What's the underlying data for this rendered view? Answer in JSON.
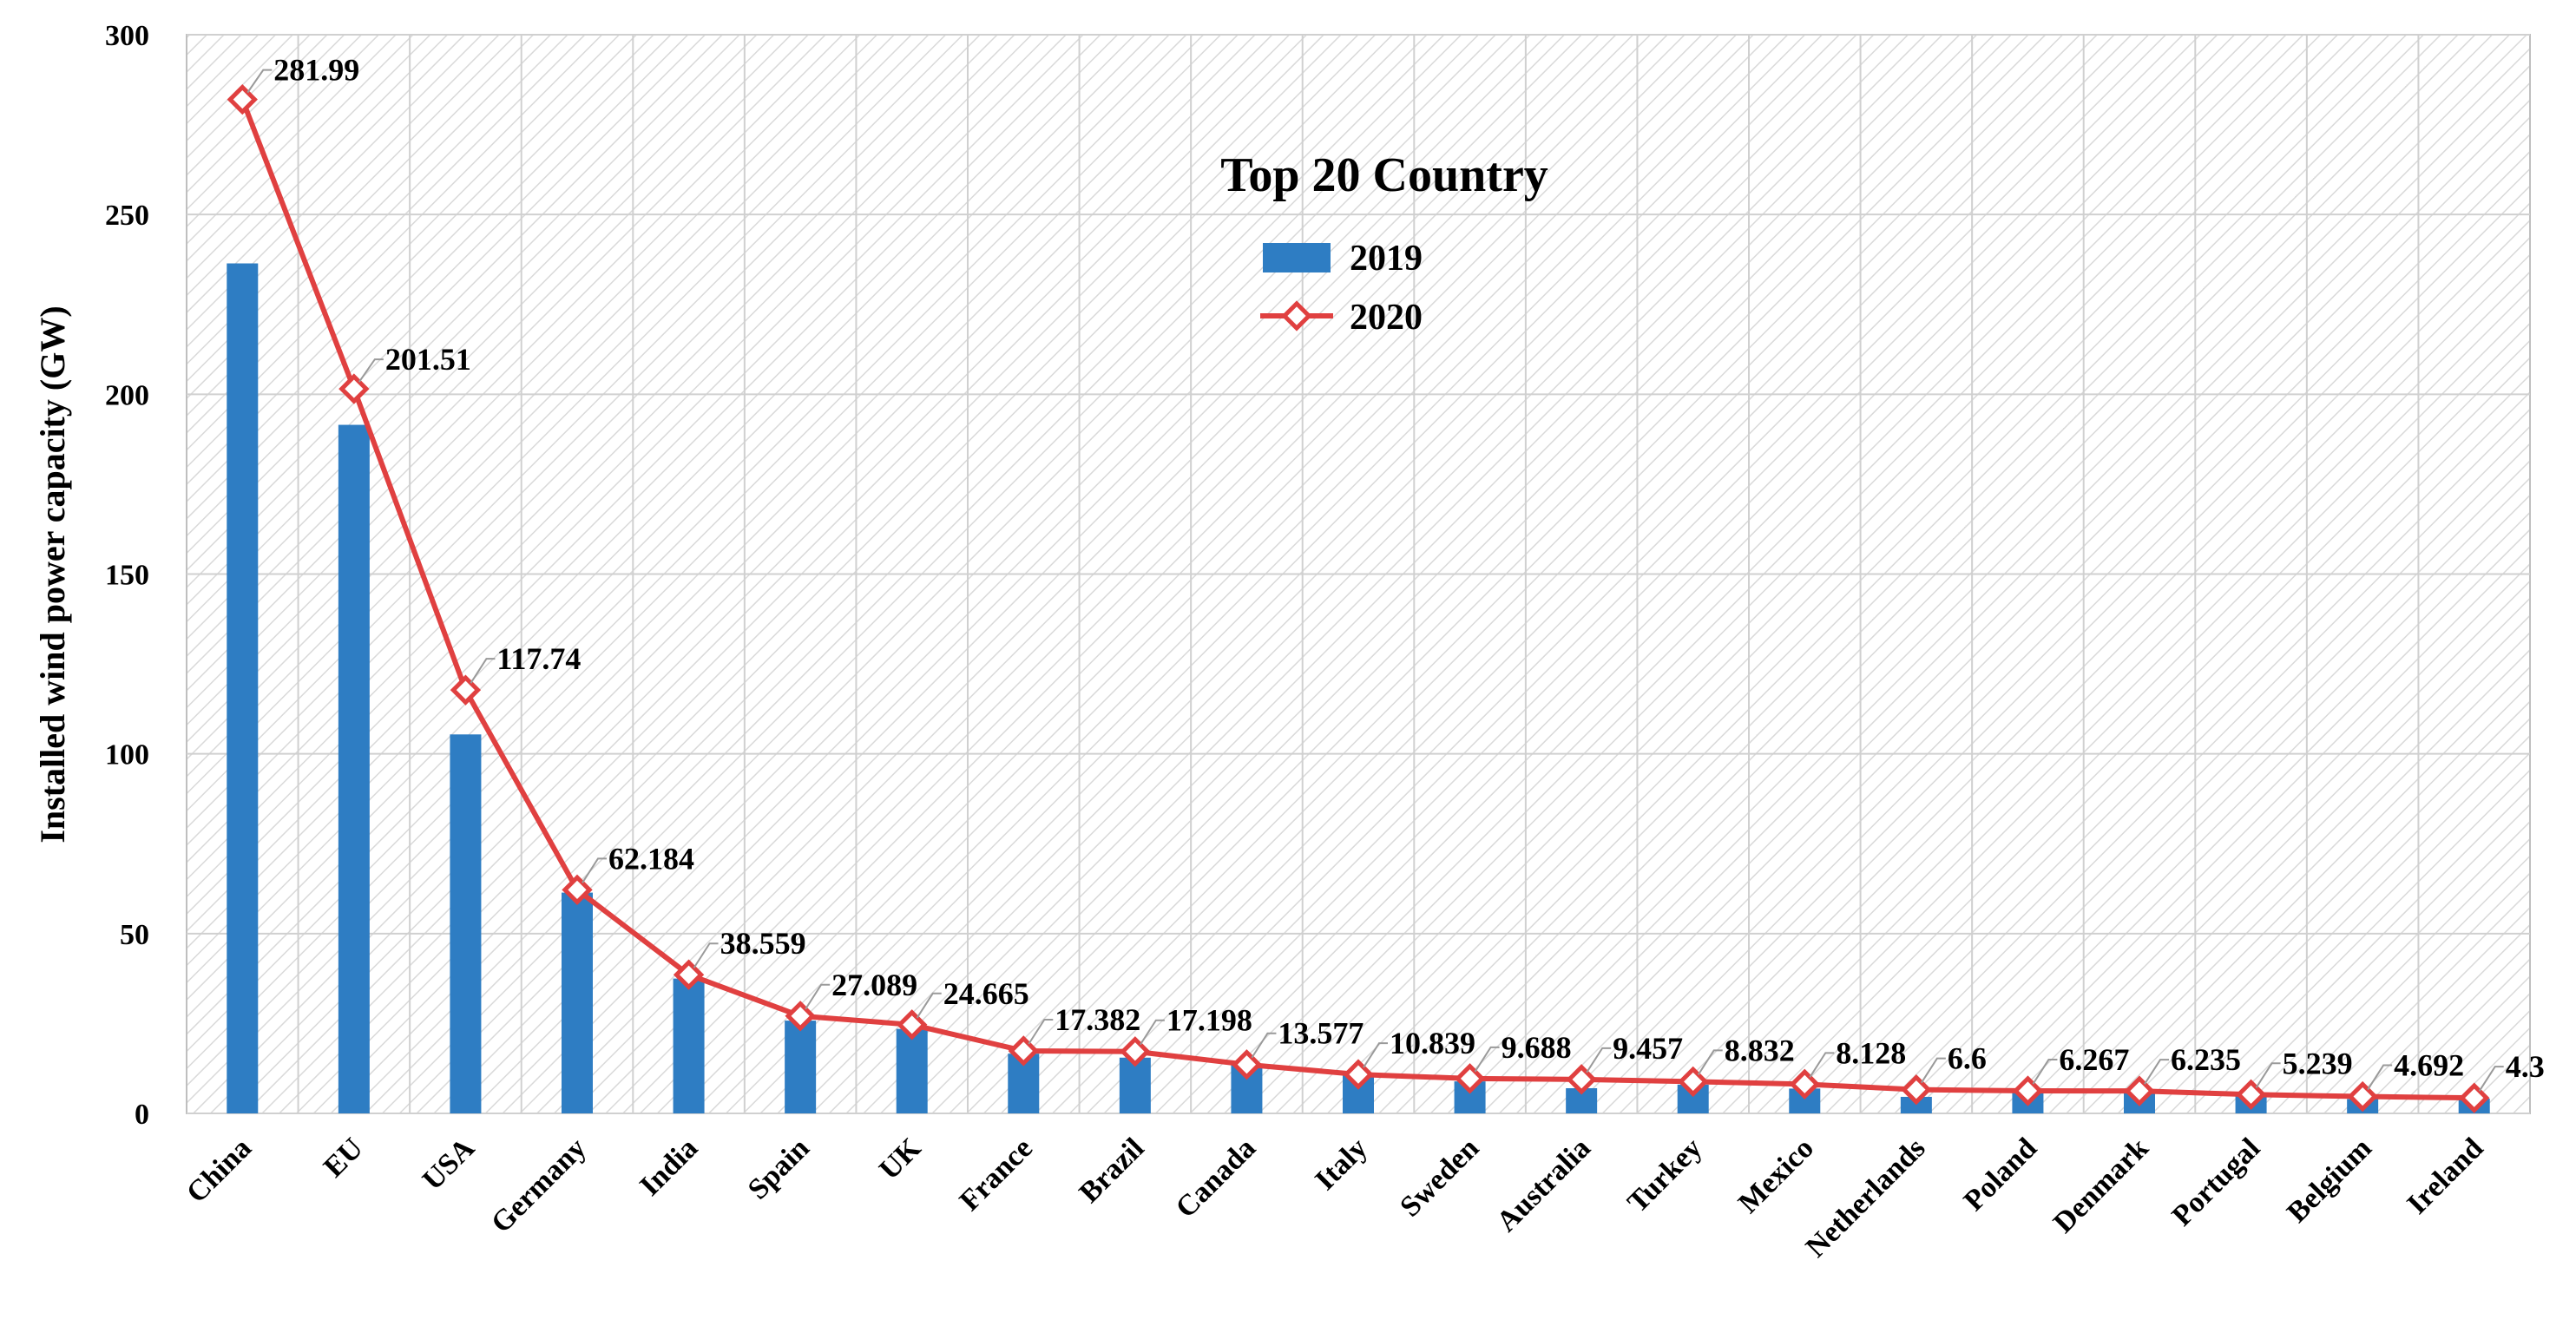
{
  "chart_data": {
    "type": "bar+line",
    "title": "Top 20 Country",
    "xlabel": "",
    "ylabel": "Installed wind power capacity (GW)",
    "ylim": [
      0,
      300
    ],
    "yticks": [
      0,
      50,
      100,
      150,
      200,
      250,
      300
    ],
    "grid": true,
    "legend_position": "top-center",
    "categories": [
      "China",
      "EU",
      "USA",
      "Germany",
      "India",
      "Spain",
      "UK",
      "France",
      "Brazil",
      "Canada",
      "Italy",
      "Sweden",
      "Australia",
      "Turkey",
      "Mexico",
      "Netherlands",
      "Poland",
      "Denmark",
      "Portugal",
      "Belgium",
      "Ireland"
    ],
    "series": [
      {
        "name": "2019",
        "kind": "bar",
        "color": "#2e7dc3",
        "values": [
          236.4,
          191.5,
          105.4,
          61.4,
          37.5,
          25.8,
          23.5,
          16.6,
          15.5,
          13.4,
          10.5,
          8.9,
          7.0,
          8.0,
          6.9,
          4.6,
          5.9,
          6.1,
          5.2,
          4.0,
          4.1
        ]
      },
      {
        "name": "2020",
        "kind": "line",
        "color": "#e04040",
        "values": [
          281.99,
          201.51,
          117.74,
          62.184,
          38.559,
          27.089,
          24.665,
          17.382,
          17.198,
          13.577,
          10.839,
          9.688,
          9.457,
          8.832,
          8.128,
          6.6,
          6.267,
          6.235,
          5.239,
          4.692,
          4.3
        ],
        "labels": [
          "281.99",
          "201.51",
          "117.74",
          "62.184",
          "38.559",
          "27.089",
          "24.665",
          "17.382",
          "17.198",
          "13.577",
          "10.839",
          "9.688",
          "9.457",
          "8.832",
          "8.128",
          "6.6",
          "6.267",
          "6.235",
          "5.239",
          "4.692",
          "4.3"
        ]
      }
    ]
  }
}
